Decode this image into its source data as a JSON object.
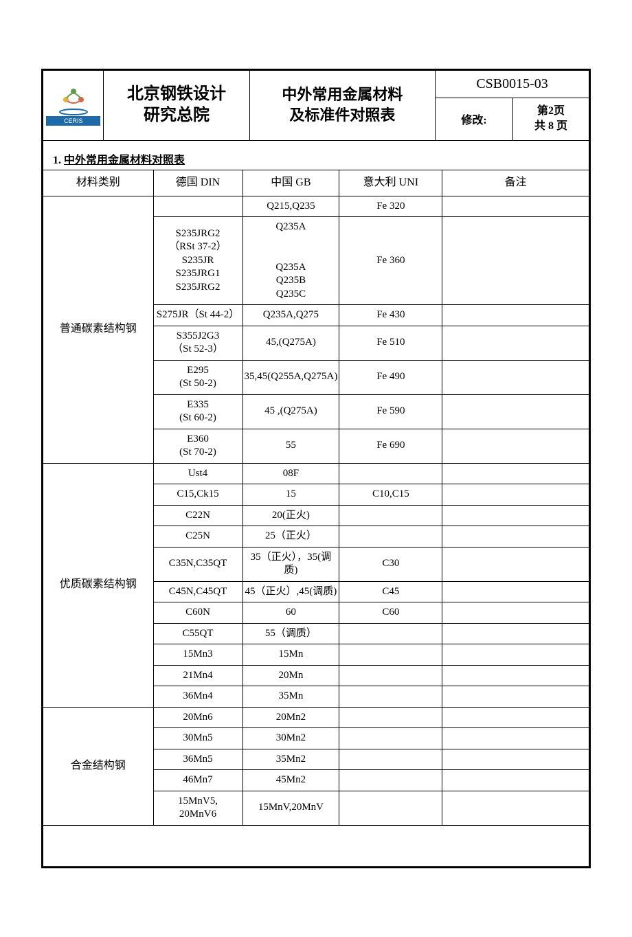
{
  "header": {
    "org_line1": "北京钢铁设计",
    "org_line2": "研究总院",
    "title_line1": "中外常用金属材料",
    "title_line2": "及标准件对照表",
    "doc_code": "CSB0015-03",
    "rev_label": "修改:",
    "page_line1": "第2页",
    "page_line2": "共 8 页",
    "logo_brand": "CERIS"
  },
  "section": {
    "num": "1.",
    "title": "中外常用金属材料对照表"
  },
  "columns": {
    "cat": "材料类别",
    "din": "德国 DIN",
    "gb": "中国 GB",
    "uni": "意大利 UNI",
    "note": "备注"
  },
  "groups": [
    {
      "category": "普通碳素结构钢",
      "rows": [
        {
          "din": "",
          "gb": "Q215,Q235",
          "uni": "Fe 320",
          "note": ""
        },
        {
          "din": "S235JRG2\n（RSt 37-2）\nS235JR\nS235JRG1\nS235JRG2",
          "gb": "Q235A\n\nQ235A\nQ235B\nQ235C",
          "uni": "Fe 360",
          "note": ""
        },
        {
          "din": "S275JR（St 44-2）",
          "gb": "Q235A,Q275",
          "uni": "Fe 430",
          "note": ""
        },
        {
          "din": "S355J2G3\n（St 52-3）",
          "gb": "45,(Q275A)",
          "uni": "Fe 510",
          "note": ""
        },
        {
          "din": "E295\n(St 50-2)",
          "gb": "35,45(Q255A,Q275A)",
          "uni": "Fe 490",
          "note": ""
        },
        {
          "din": "E335\n(St 60-2)",
          "gb": "45 ,(Q275A)",
          "uni": "Fe 590",
          "note": ""
        },
        {
          "din": "E360\n(St 70-2)",
          "gb": "55",
          "uni": "Fe 690",
          "note": ""
        }
      ]
    },
    {
      "category": "优质碳素结构钢",
      "rows": [
        {
          "din": "Ust4",
          "gb": "08F",
          "uni": "",
          "note": ""
        },
        {
          "din": "C15,Ck15",
          "gb": "15",
          "uni": "C10,C15",
          "note": ""
        },
        {
          "din": "C22N",
          "gb": "20(正火)",
          "uni": "",
          "note": ""
        },
        {
          "din": "C25N",
          "gb": "25（正火）",
          "uni": "",
          "note": ""
        },
        {
          "din": "C35N,C35QT",
          "gb": "35（正火），35(调质)",
          "uni": "C30",
          "note": ""
        },
        {
          "din": "C45N,C45QT",
          "gb": "45（正火）,45(调质)",
          "uni": "C45",
          "note": ""
        },
        {
          "din": "C60N",
          "gb": "60",
          "uni": "C60",
          "note": ""
        },
        {
          "din": "C55QT",
          "gb": "55（调质）",
          "uni": "",
          "note": ""
        },
        {
          "din": "15Mn3",
          "gb": "15Mn",
          "uni": "",
          "note": ""
        },
        {
          "din": "21Mn4",
          "gb": "20Mn",
          "uni": "",
          "note": ""
        },
        {
          "din": "36Mn4",
          "gb": "35Mn",
          "uni": "",
          "note": ""
        }
      ]
    },
    {
      "category": "合金结构钢",
      "rows": [
        {
          "din": "20Mn6",
          "gb": "20Mn2",
          "uni": "",
          "note": ""
        },
        {
          "din": "30Mn5",
          "gb": "30Mn2",
          "uni": "",
          "note": ""
        },
        {
          "din": "36Mn5",
          "gb": "35Mn2",
          "uni": "",
          "note": ""
        },
        {
          "din": "46Mn7",
          "gb": "45Mn2",
          "uni": "",
          "note": ""
        },
        {
          "din": "15MnV5,\n20MnV6",
          "gb": "15MnV,20MnV",
          "uni": "",
          "note": ""
        }
      ]
    }
  ]
}
